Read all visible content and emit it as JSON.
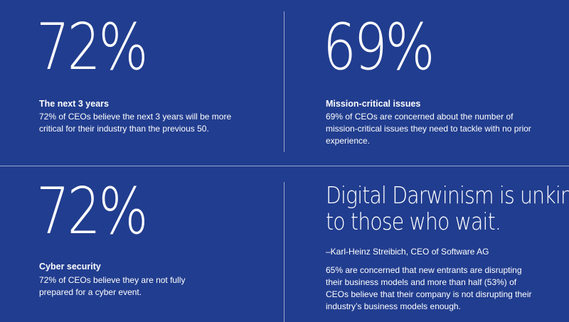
{
  "blocks": [
    {
      "stat": "72%",
      "title": "The next 3 years",
      "body": "72% of CEOs believe the next 3 years will be more critical for their industry than the previous 50."
    },
    {
      "stat": "69%",
      "title": "Mission-critical issues",
      "body": "69% of CEOs are concerned about the number of mission-critical issues they need to tackle with no prior experience."
    },
    {
      "stat": "72%",
      "title": "Cyber security",
      "body": "72% of CEOs believe they are not fully prepared for a cyber event."
    }
  ],
  "quote": {
    "line1": "Digital Darwinism is unkind",
    "line2": "to those who wait.",
    "attribution": "–Karl-Heinz Streibich, CEO of Software AG",
    "body": "65% are concerned that new entrants are disrupting their business models and more than half (53%) of CEOs believe that their company is not disrupting their industry’s business models enough."
  }
}
